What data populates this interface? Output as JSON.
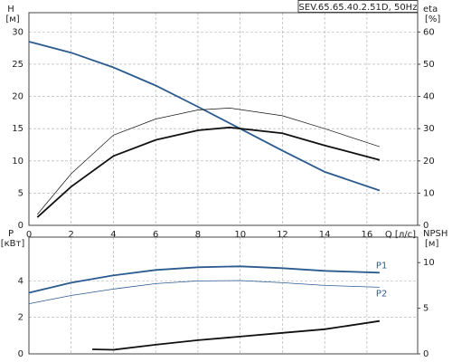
{
  "chart_data": [
    {
      "type": "line",
      "title": "SEV.65.65.40.2.51D, 50Hz",
      "ylabel": "H",
      "ylabel_unit": "[м]",
      "y2label": "eta",
      "y2label_unit": "[%]",
      "xlabel": "Q [л/с]",
      "xlim": [
        0,
        18.4
      ],
      "xticks": [
        0,
        2,
        4,
        6,
        8,
        10,
        12,
        14,
        16
      ],
      "show_xtick_labels": true,
      "ylim": [
        0,
        33
      ],
      "yticks": [
        0,
        5,
        10,
        15,
        20,
        25,
        30
      ],
      "y2lim": [
        0,
        66
      ],
      "y2ticks": [
        0,
        10,
        20,
        30,
        40,
        50,
        60
      ],
      "grid": true,
      "series": [
        {
          "color": "#2b5b8e",
          "linewidth": 1.8,
          "axis": "y",
          "x": [
            0,
            2,
            4,
            6,
            8,
            10,
            12,
            14,
            16.6
          ],
          "values": [
            28.5,
            26.8,
            24.5,
            21.7,
            18.4,
            15.0,
            11.6,
            8.3,
            5.4
          ]
        },
        {
          "color": "#111111",
          "linewidth": 1.8,
          "axis": "y2",
          "x": [
            0.4,
            2,
            4,
            6,
            8,
            9.5,
            12,
            14,
            16.6
          ],
          "values": [
            2.5,
            12,
            21.5,
            26.5,
            29.5,
            30.4,
            28.6,
            24.8,
            20.3
          ]
        },
        {
          "color": "#111111",
          "linewidth": 0.7,
          "axis": "y2",
          "x": [
            0.4,
            2,
            4,
            6,
            8,
            9.5,
            12,
            14,
            16.6
          ],
          "values": [
            3.4,
            16,
            28,
            33,
            35.8,
            36.4,
            34,
            30,
            24.4
          ]
        }
      ]
    },
    {
      "type": "line",
      "ylabel": "P",
      "ylabel_unit": "[кВт]",
      "y2label": "NPSH",
      "y2label_unit": "[м]",
      "xlim": [
        0,
        18.4
      ],
      "xticks": [
        0,
        2,
        4,
        6,
        8,
        10,
        12,
        14,
        16
      ],
      "show_xtick_labels": false,
      "ylim": [
        0,
        6.4
      ],
      "yticks": [
        0,
        2,
        4
      ],
      "y2lim": [
        0,
        12.8
      ],
      "y2ticks": [
        0,
        5,
        10
      ],
      "grid": true,
      "series": [
        {
          "name": "P1",
          "color": "#2b5b8e",
          "linewidth": 1.8,
          "axis": "y",
          "x": [
            0,
            2,
            4,
            6,
            8,
            10,
            12,
            14,
            16.6
          ],
          "values": [
            3.35,
            3.9,
            4.3,
            4.6,
            4.75,
            4.8,
            4.7,
            4.55,
            4.45
          ]
        },
        {
          "name": "P2",
          "color": "#2b5b8e",
          "linewidth": 0.8,
          "axis": "y",
          "x": [
            0,
            2,
            4,
            6,
            8,
            10,
            12,
            14,
            16.6
          ],
          "values": [
            2.75,
            3.2,
            3.55,
            3.85,
            4.0,
            4.02,
            3.9,
            3.75,
            3.65
          ]
        },
        {
          "color": "#111111",
          "linewidth": 1.8,
          "axis": "y2",
          "x": [
            3,
            4,
            6,
            8,
            10,
            12,
            14,
            16.6
          ],
          "values": [
            0.5,
            0.45,
            1.0,
            1.5,
            1.9,
            2.3,
            2.7,
            3.6
          ]
        }
      ]
    }
  ]
}
